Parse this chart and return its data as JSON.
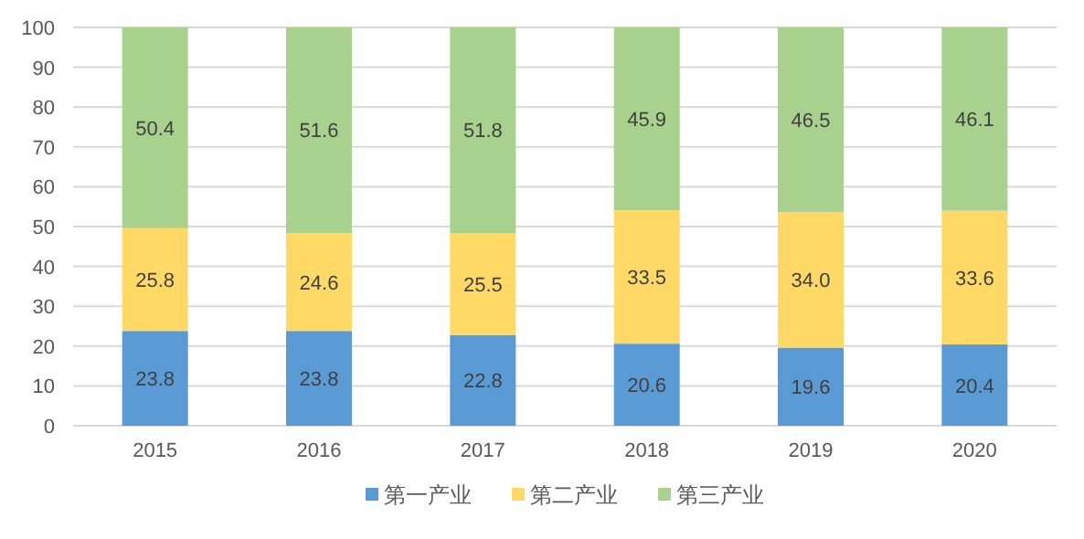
{
  "chart_data": {
    "type": "bar",
    "stacked": true,
    "categories": [
      "2015",
      "2016",
      "2017",
      "2018",
      "2019",
      "2020"
    ],
    "series": [
      {
        "name": "第一产业",
        "color": "#5b9bd5",
        "values": [
          23.8,
          23.8,
          22.8,
          20.6,
          19.6,
          20.4
        ],
        "value_labels": [
          "23.8",
          "23.8",
          "22.8",
          "20.6",
          "19.6",
          "20.4"
        ]
      },
      {
        "name": "第二产业",
        "color": "#ffd966",
        "values": [
          25.8,
          24.6,
          25.5,
          33.5,
          34.0,
          33.6
        ],
        "value_labels": [
          "25.8",
          "24.6",
          "25.5",
          "33.5",
          "34.0",
          "33.6"
        ]
      },
      {
        "name": "第三产业",
        "color": "#a9d18e",
        "values": [
          50.4,
          51.6,
          51.8,
          45.9,
          46.5,
          46.1
        ],
        "value_labels": [
          "50.4",
          "51.6",
          "51.8",
          "45.9",
          "46.5",
          "46.1"
        ]
      }
    ],
    "ylim": [
      0,
      100
    ],
    "yticks": [
      0,
      10,
      20,
      30,
      40,
      50,
      60,
      70,
      80,
      90,
      100
    ],
    "grid": "y",
    "legend": "bottom"
  }
}
